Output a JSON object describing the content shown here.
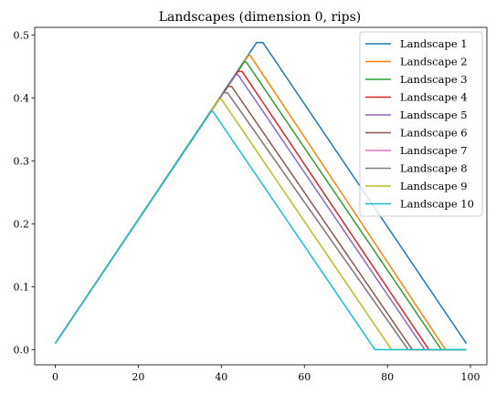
{
  "chart_data": {
    "type": "line",
    "title": "Landscapes (dimension 0, rips)",
    "xlabel": "",
    "ylabel": "",
    "xlim": [
      -4.95,
      103.95
    ],
    "ylim": [
      -0.024,
      0.512
    ],
    "xticks": [
      0,
      20,
      40,
      60,
      80,
      100
    ],
    "yticks": [
      0.0,
      0.1,
      0.2,
      0.3,
      0.4,
      0.5
    ],
    "ytick_labels": [
      "0.0",
      "0.1",
      "0.2",
      "0.3",
      "0.4",
      "0.5"
    ],
    "grid": false,
    "legend_position": "upper right",
    "series": [
      {
        "name": "Landscape 1",
        "color": "#1f77b4",
        "x": [
          0,
          48.5,
          50,
          99
        ],
        "y": [
          0.01,
          0.488,
          0.488,
          0.01
        ]
      },
      {
        "name": "Landscape 2",
        "color": "#ff7f0e",
        "x": [
          0,
          46.5,
          47,
          94,
          99
        ],
        "y": [
          0.01,
          0.467,
          0.467,
          0.0,
          0.0
        ]
      },
      {
        "name": "Landscape 3",
        "color": "#2ca02c",
        "x": [
          0,
          45.5,
          46,
          93,
          99
        ],
        "y": [
          0.01,
          0.457,
          0.457,
          0.0,
          0.0
        ]
      },
      {
        "name": "Landscape 4",
        "color": "#d62728",
        "x": [
          0,
          44,
          45,
          90,
          99
        ],
        "y": [
          0.01,
          0.442,
          0.442,
          0.0,
          0.0
        ]
      },
      {
        "name": "Landscape 5",
        "color": "#9467bd",
        "x": [
          0,
          43.5,
          44,
          89,
          99
        ],
        "y": [
          0.01,
          0.437,
          0.437,
          0.0,
          0.0
        ]
      },
      {
        "name": "Landscape 6",
        "color": "#8c564b",
        "x": [
          0,
          41.5,
          42.5,
          86,
          99
        ],
        "y": [
          0.01,
          0.418,
          0.418,
          0.0,
          0.0
        ]
      },
      {
        "name": "Landscape 7",
        "color": "#e377c2",
        "x": [
          0,
          40.5,
          41.5,
          85,
          99
        ],
        "y": [
          0.01,
          0.408,
          0.408,
          0.0,
          0.0
        ]
      },
      {
        "name": "Landscape 8",
        "color": "#7f7f7f",
        "x": [
          0,
          40.5,
          41.5,
          85,
          99
        ],
        "y": [
          0.01,
          0.408,
          0.408,
          0.0,
          0.0
        ]
      },
      {
        "name": "Landscape 9",
        "color": "#bcbd22",
        "x": [
          0,
          39.5,
          40,
          81,
          99
        ],
        "y": [
          0.01,
          0.398,
          0.398,
          0.0,
          0.0
        ]
      },
      {
        "name": "Landscape 10",
        "color": "#17becf",
        "x": [
          0,
          37.5,
          38,
          77,
          99
        ],
        "y": [
          0.01,
          0.378,
          0.378,
          0.0,
          0.0
        ]
      }
    ]
  }
}
